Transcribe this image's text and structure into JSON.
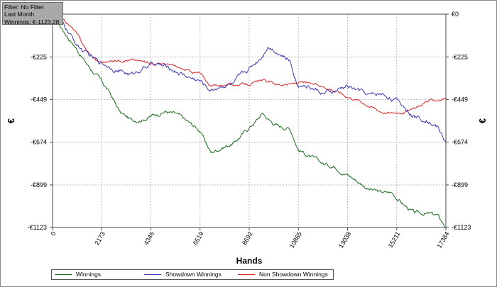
{
  "filter": {
    "line1": "Filter: No Filter",
    "line2": "Last Month",
    "line3": "Winnings: €-1123.28"
  },
  "chart_data": {
    "type": "line",
    "xlabel": "Hands",
    "ylabel": "€",
    "ylabel_right": "€",
    "xlim": [
      0,
      17384
    ],
    "ylim": [
      -1123,
      0
    ],
    "x_ticks": [
      0,
      2173,
      4346,
      6519,
      8692,
      10865,
      13038,
      15211,
      17384
    ],
    "y_ticks": [
      0,
      -225,
      -449,
      -674,
      -899,
      -1123
    ],
    "y_tick_labels": [
      "€0",
      "-€225",
      "-€449",
      "-€674",
      "-€899",
      "-€1123"
    ],
    "y_tick_labels_right": [
      "€0",
      "-€225",
      "-€449",
      "-€674",
      "-€899",
      "-€1123"
    ],
    "grid": true,
    "legend_position": "bottom",
    "colors": {
      "winnings": "#1a6b1a",
      "showdown": "#3a3ab8",
      "non_showdown": "#e02020",
      "grid": "#b8b8b8"
    },
    "x": [
      0,
      500,
      1000,
      1500,
      2000,
      2500,
      3000,
      3500,
      4000,
      4500,
      5000,
      5500,
      6000,
      6500,
      7000,
      7500,
      8000,
      8500,
      9000,
      9300,
      9500,
      10000,
      10500,
      10865,
      11000,
      11500,
      12000,
      12500,
      13000,
      13500,
      14000,
      14500,
      15000,
      15500,
      16000,
      16500,
      17000,
      17384
    ],
    "series": [
      {
        "name": "Winnings",
        "values": [
          0,
          -90,
          -170,
          -260,
          -330,
          -410,
          -520,
          -560,
          -550,
          -530,
          -510,
          -530,
          -570,
          -610,
          -730,
          -700,
          -680,
          -620,
          -560,
          -520,
          -550,
          -590,
          -600,
          -710,
          -720,
          -760,
          -790,
          -800,
          -840,
          -880,
          -920,
          -940,
          -940,
          -1000,
          -1050,
          -1050,
          -1060,
          -1123
        ]
      },
      {
        "name": "Showdown Winnings",
        "values": [
          0,
          -60,
          -150,
          -210,
          -250,
          -270,
          -300,
          -320,
          -280,
          -260,
          -280,
          -300,
          -330,
          -350,
          -400,
          -370,
          -370,
          -310,
          -250,
          -210,
          -160,
          -200,
          -250,
          -380,
          -360,
          -390,
          -420,
          -410,
          -380,
          -400,
          -430,
          -420,
          -440,
          -480,
          -540,
          -550,
          -590,
          -674
        ]
      },
      {
        "name": "Non Showdown Winnings",
        "values": [
          0,
          -30,
          -90,
          -190,
          -250,
          -250,
          -240,
          -240,
          -250,
          -260,
          -260,
          -280,
          -300,
          -310,
          -380,
          -370,
          -370,
          -370,
          -360,
          -350,
          -360,
          -370,
          -370,
          -360,
          -360,
          -370,
          -380,
          -400,
          -430,
          -450,
          -480,
          -510,
          -520,
          -510,
          -500,
          -460,
          -450,
          -440
        ]
      }
    ]
  }
}
